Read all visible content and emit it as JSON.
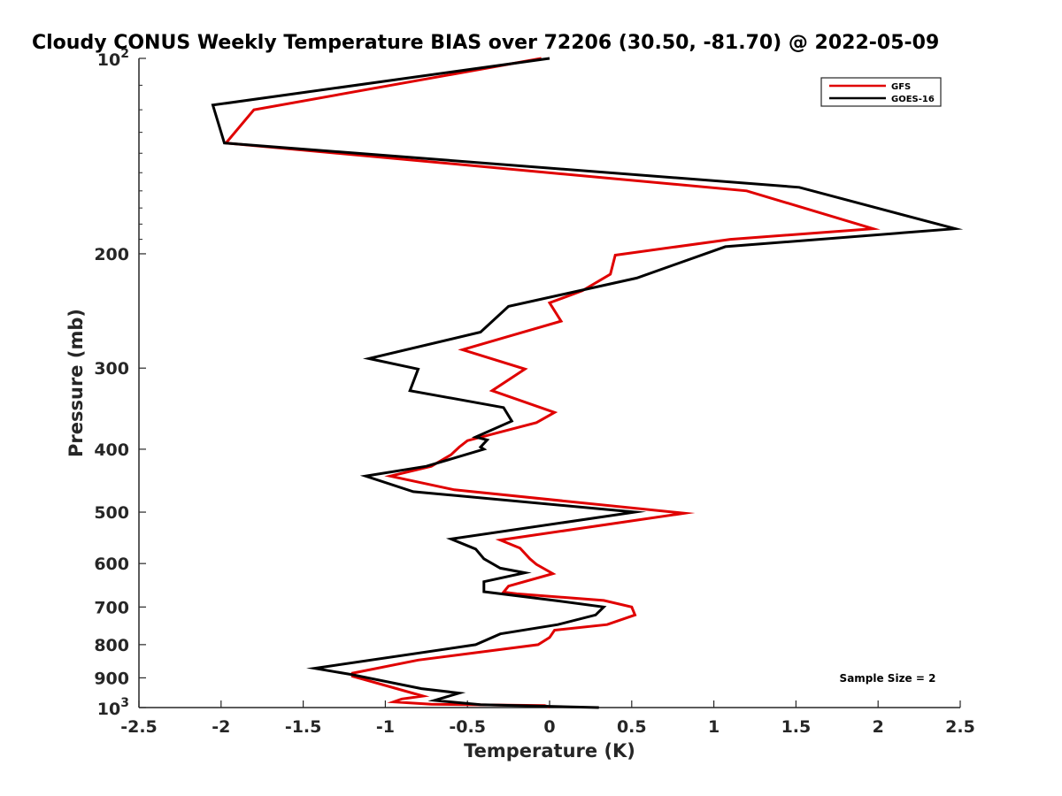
{
  "chart_data": {
    "type": "line",
    "title": "Cloudy CONUS Weekly Temperature BIAS over 72206 (30.50, -81.70) @ 2022-05-09",
    "xlabel": "Temperature (K)",
    "ylabel": "Pressure (mb)",
    "xlim": [
      -2.5,
      2.5
    ],
    "ylim": [
      100,
      1000
    ],
    "yscale": "log",
    "y_reversed": true,
    "x_ticks": [
      -2.5,
      -2,
      -1.5,
      -1,
      -0.5,
      0,
      0.5,
      1,
      1.5,
      2,
      2.5
    ],
    "x_tick_labels": [
      "-2.5",
      "-2",
      "-1.5",
      "-1",
      "-0.5",
      "0",
      "0.5",
      "1",
      "1.5",
      "2",
      "2.5"
    ],
    "y_ticks": [
      200,
      300,
      400,
      500,
      600,
      700,
      800,
      900
    ],
    "y_tick_labels": [
      "200",
      "300",
      "400",
      "500",
      "600",
      "700",
      "800",
      "900"
    ],
    "y_top_label": {
      "base": "10",
      "exp": "2"
    },
    "y_bottom_label": {
      "base": "10",
      "exp": "3"
    },
    "legend_position": "top-right",
    "annotation": "Sample Size = 2",
    "series": [
      {
        "name": "GFS",
        "color": "#e00000",
        "points": [
          [
            -0.05,
            100
          ],
          [
            -1.8,
            120
          ],
          [
            -1.97,
            135
          ],
          [
            1.2,
            160
          ],
          [
            1.97,
            183
          ],
          [
            1.1,
            190
          ],
          [
            0.4,
            201
          ],
          [
            0.37,
            215
          ],
          [
            0.2,
            228
          ],
          [
            0.0,
            238
          ],
          [
            0.07,
            254
          ],
          [
            -0.53,
            281
          ],
          [
            -0.15,
            301
          ],
          [
            -0.35,
            325
          ],
          [
            0.03,
            351
          ],
          [
            -0.08,
            364
          ],
          [
            -0.5,
            388
          ],
          [
            -0.55,
            397
          ],
          [
            -0.6,
            408
          ],
          [
            -0.72,
            425
          ],
          [
            -0.97,
            440
          ],
          [
            -0.58,
            462
          ],
          [
            0.82,
            502
          ],
          [
            -0.3,
            552
          ],
          [
            -0.18,
            568
          ],
          [
            -0.12,
            590
          ],
          [
            -0.08,
            602
          ],
          [
            0.02,
            622
          ],
          [
            -0.25,
            650
          ],
          [
            -0.28,
            664
          ],
          [
            -0.2,
            668
          ],
          [
            0.33,
            684
          ],
          [
            0.5,
            700
          ],
          [
            0.52,
            720
          ],
          [
            0.35,
            745
          ],
          [
            0.03,
            760
          ],
          [
            0.0,
            780
          ],
          [
            -0.07,
            800
          ],
          [
            -0.8,
            845
          ],
          [
            -1.2,
            885
          ],
          [
            -1.2,
            895
          ],
          [
            -0.77,
            960
          ],
          [
            -0.9,
            970
          ],
          [
            -0.95,
            980
          ],
          [
            -0.72,
            988
          ],
          [
            -0.03,
            993
          ],
          [
            0.0,
            998
          ]
        ]
      },
      {
        "name": "GOES-16",
        "color": "#000000",
        "points": [
          [
            0.0,
            100
          ],
          [
            -2.05,
            118
          ],
          [
            -1.98,
            135
          ],
          [
            1.52,
            158
          ],
          [
            2.47,
            183
          ],
          [
            1.07,
            195
          ],
          [
            0.53,
            218
          ],
          [
            -0.25,
            241
          ],
          [
            -0.42,
            264
          ],
          [
            -1.1,
            290
          ],
          [
            -0.8,
            301
          ],
          [
            -0.85,
            325
          ],
          [
            -0.28,
            345
          ],
          [
            -0.23,
            362
          ],
          [
            -0.45,
            383
          ],
          [
            -0.38,
            387
          ],
          [
            -0.42,
            397
          ],
          [
            -0.4,
            400
          ],
          [
            -0.75,
            425
          ],
          [
            -1.12,
            440
          ],
          [
            -0.83,
            465
          ],
          [
            0.52,
            500
          ],
          [
            -0.6,
            550
          ],
          [
            -0.45,
            570
          ],
          [
            -0.4,
            590
          ],
          [
            -0.3,
            610
          ],
          [
            -0.15,
            620
          ],
          [
            -0.4,
            640
          ],
          [
            -0.4,
            663
          ],
          [
            0.05,
            685
          ],
          [
            0.33,
            700
          ],
          [
            0.28,
            720
          ],
          [
            0.05,
            745
          ],
          [
            -0.3,
            770
          ],
          [
            -0.45,
            800
          ],
          [
            -1.43,
            870
          ],
          [
            -1.2,
            890
          ],
          [
            -0.78,
            935
          ],
          [
            -0.55,
            950
          ],
          [
            -0.7,
            975
          ],
          [
            -0.42,
            990
          ],
          [
            0.3,
            1000
          ]
        ]
      }
    ]
  }
}
